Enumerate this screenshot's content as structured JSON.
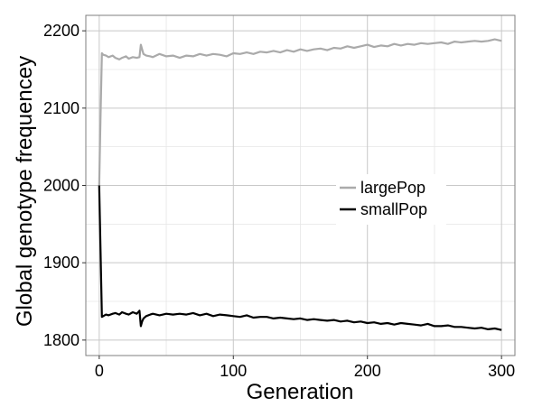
{
  "chart_data": {
    "type": "line",
    "title": "",
    "xlabel": "Generation",
    "ylabel": "Global genotype frequencey",
    "xlim": [
      -10,
      310
    ],
    "ylim": [
      1780,
      2220
    ],
    "x_ticks": [
      0,
      100,
      200,
      300
    ],
    "y_ticks": [
      1800,
      1900,
      2000,
      2100,
      2200
    ],
    "grid": true,
    "legend_position": "center-right",
    "colors": {
      "largePop": "#aaaaaa",
      "smallPop": "#000000",
      "grid_major": "#c8c8c8",
      "grid_minor": "#e6e6e6",
      "panel_border": "#7f7f7f"
    },
    "series": [
      {
        "name": "largePop",
        "x": [
          0,
          1,
          2,
          3,
          5,
          7,
          10,
          12,
          15,
          17,
          20,
          22,
          25,
          28,
          30,
          31,
          32,
          33,
          35,
          38,
          40,
          45,
          50,
          55,
          60,
          65,
          70,
          75,
          80,
          85,
          90,
          95,
          100,
          105,
          110,
          115,
          120,
          125,
          130,
          135,
          140,
          145,
          150,
          155,
          160,
          165,
          170,
          175,
          180,
          185,
          190,
          195,
          200,
          205,
          210,
          215,
          220,
          225,
          230,
          235,
          240,
          245,
          250,
          255,
          260,
          265,
          270,
          275,
          280,
          285,
          290,
          295,
          300
        ],
        "y": [
          2000,
          2090,
          2171,
          2169,
          2168,
          2166,
          2168,
          2165,
          2163,
          2165,
          2167,
          2164,
          2166,
          2165,
          2166,
          2182,
          2176,
          2170,
          2168,
          2167,
          2166,
          2170,
          2167,
          2168,
          2165,
          2168,
          2167,
          2170,
          2168,
          2170,
          2169,
          2167,
          2171,
          2170,
          2172,
          2170,
          2173,
          2172,
          2174,
          2172,
          2175,
          2173,
          2176,
          2174,
          2176,
          2177,
          2175,
          2178,
          2177,
          2180,
          2178,
          2180,
          2182,
          2179,
          2181,
          2180,
          2183,
          2181,
          2183,
          2182,
          2184,
          2183,
          2184,
          2185,
          2183,
          2186,
          2185,
          2186,
          2187,
          2186,
          2187,
          2189,
          2187
        ]
      },
      {
        "name": "smallPop",
        "x": [
          0,
          1,
          2,
          3,
          5,
          7,
          10,
          12,
          15,
          17,
          20,
          22,
          25,
          28,
          30,
          31,
          32,
          33,
          35,
          38,
          40,
          45,
          50,
          55,
          60,
          65,
          70,
          75,
          80,
          85,
          90,
          95,
          100,
          105,
          110,
          115,
          120,
          125,
          130,
          135,
          140,
          145,
          150,
          155,
          160,
          165,
          170,
          175,
          180,
          185,
          190,
          195,
          200,
          205,
          210,
          215,
          220,
          225,
          230,
          235,
          240,
          245,
          250,
          255,
          260,
          265,
          270,
          275,
          280,
          285,
          290,
          295,
          300
        ],
        "y": [
          2000,
          1915,
          1830,
          1831,
          1833,
          1832,
          1834,
          1835,
          1833,
          1836,
          1834,
          1833,
          1836,
          1834,
          1838,
          1818,
          1824,
          1828,
          1831,
          1833,
          1834,
          1832,
          1834,
          1833,
          1834,
          1833,
          1835,
          1832,
          1834,
          1831,
          1833,
          1832,
          1831,
          1830,
          1832,
          1829,
          1830,
          1830,
          1828,
          1829,
          1828,
          1827,
          1828,
          1826,
          1827,
          1826,
          1825,
          1826,
          1824,
          1825,
          1823,
          1824,
          1822,
          1823,
          1821,
          1822,
          1820,
          1822,
          1821,
          1820,
          1819,
          1821,
          1818,
          1818,
          1819,
          1817,
          1817,
          1816,
          1815,
          1816,
          1814,
          1815,
          1813
        ]
      }
    ]
  }
}
